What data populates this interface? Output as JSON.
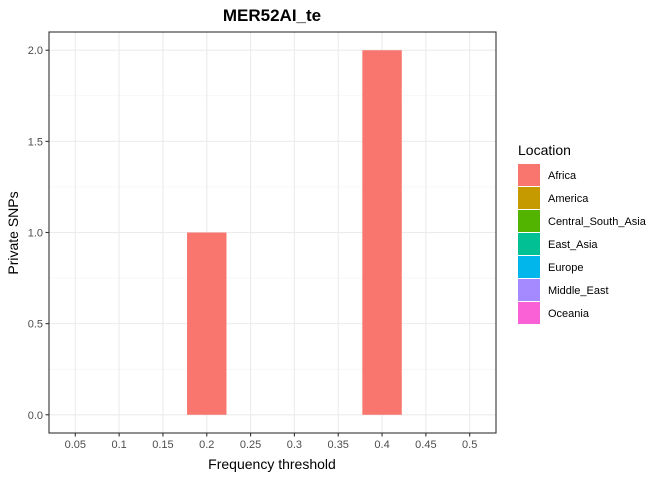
{
  "chart_data": {
    "type": "bar",
    "title": "MER52AI_te",
    "xlabel": "Frequency threshold",
    "ylabel": "Private SNPs",
    "categories": [
      "0.05",
      "0.1",
      "0.15",
      "0.2",
      "0.25",
      "0.3",
      "0.35",
      "0.4",
      "0.45",
      "0.5"
    ],
    "series": [
      {
        "name": "Africa",
        "color": "#F8766D",
        "values": [
          0,
          0,
          0,
          1,
          0,
          0,
          0,
          2,
          0,
          0
        ]
      },
      {
        "name": "America",
        "color": "#C49A00",
        "values": [
          0,
          0,
          0,
          0,
          0,
          0,
          0,
          0,
          0,
          0
        ]
      },
      {
        "name": "Central_South_Asia",
        "color": "#53B400",
        "values": [
          0,
          0,
          0,
          0,
          0,
          0,
          0,
          0,
          0,
          0
        ]
      },
      {
        "name": "East_Asia",
        "color": "#00C094",
        "values": [
          0,
          0,
          0,
          0,
          0,
          0,
          0,
          0,
          0,
          0
        ]
      },
      {
        "name": "Europe",
        "color": "#00B6EB",
        "values": [
          0,
          0,
          0,
          0,
          0,
          0,
          0,
          0,
          0,
          0
        ]
      },
      {
        "name": "Middle_East",
        "color": "#A58AFF",
        "values": [
          0,
          0,
          0,
          0,
          0,
          0,
          0,
          0,
          0,
          0
        ]
      },
      {
        "name": "Oceania",
        "color": "#FB61D7",
        "values": [
          0,
          0,
          0,
          0,
          0,
          0,
          0,
          0,
          0,
          0
        ]
      }
    ],
    "yticks": [
      "0.0",
      "0.5",
      "1.0",
      "1.5",
      "2.0"
    ],
    "ylim": [
      -0.1,
      2.1
    ],
    "legend_title": "Location",
    "legend_position": "right",
    "grid": true
  }
}
